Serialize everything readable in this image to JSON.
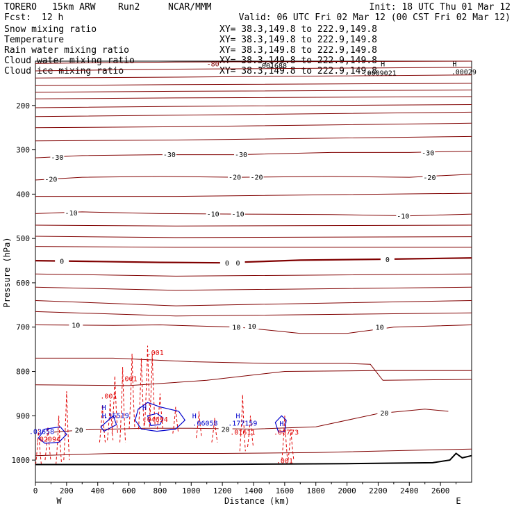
{
  "colors": {
    "snow": "#000000",
    "temperature": "#800000",
    "rain": "#e00000",
    "cloud_water": "#0000cc",
    "cloud_ice": "#000000",
    "zero_isotherm": "#800000"
  },
  "header": {
    "model": "TORERO",
    "resolution": "15km ARW",
    "run": "Run2",
    "org": "NCAR/MMM",
    "init": "Init: 18 UTC Thu 01 Mar 12",
    "fcst_label": "Fcst:",
    "fcst_value": "12 h",
    "valid": "Valid: 06 UTC Fri 02 Mar 12 (00 CST Fri 02 Mar 12)"
  },
  "legend": [
    {
      "name": "Snow mixing ratio",
      "xy": "XY=  38.3,149.8 to 222.9,149.8",
      "color": "#000000"
    },
    {
      "name": "Temperature",
      "xy": "XY=  38.3,149.8 to 222.9,149.8",
      "color": "#800000"
    },
    {
      "name": "Rain water mixing ratio",
      "xy": "XY=  38.3,149.8 to 222.9,149.8",
      "color": "#e00000"
    },
    {
      "name": "Cloud water mixing ratio",
      "xy": "XY=  38.3,149.8 to 222.9,149.8",
      "color": "#0000cc"
    },
    {
      "name": "Cloud ice mixing ratio",
      "xy": "XY=  38.3,149.8 to 222.9,149.8",
      "color": "#000000"
    }
  ],
  "chart_data": {
    "type": "cross-section contour",
    "xlabel": "Distance (km)",
    "ylabel": "Pressure (hPa)",
    "xlim": [
      0,
      2800
    ],
    "ylim": [
      1050,
      100
    ],
    "x_ticks": [
      0,
      200,
      400,
      600,
      800,
      1000,
      1200,
      1400,
      1600,
      1800,
      2000,
      2200,
      2400,
      2600
    ],
    "y_ticks": [
      200,
      300,
      400,
      500,
      600,
      700,
      800,
      900,
      1000
    ],
    "endpoints": {
      "left": "W",
      "right": "E"
    },
    "temperature_contours": [
      {
        "label": "-30",
        "points": [
          [
            0,
            318
          ],
          [
            300,
            313
          ],
          [
            800,
            311
          ],
          [
            1300,
            311
          ],
          [
            1900,
            306
          ],
          [
            2400,
            306
          ],
          [
            2800,
            303
          ]
        ],
        "labels_at": [
          [
            140,
            316
          ],
          [
            860,
            310
          ],
          [
            1320,
            310
          ],
          [
            2520,
            306
          ]
        ]
      },
      {
        "label": "-20",
        "points": [
          [
            0,
            368
          ],
          [
            300,
            362
          ],
          [
            800,
            360
          ],
          [
            1300,
            362
          ],
          [
            1900,
            360
          ],
          [
            2400,
            362
          ],
          [
            2800,
            355
          ]
        ],
        "labels_at": [
          [
            100,
            366
          ],
          [
            1280,
            361
          ],
          [
            1420,
            361
          ],
          [
            2530,
            362
          ]
        ]
      },
      {
        "label": "-10",
        "points": [
          [
            0,
            444
          ],
          [
            300,
            440
          ],
          [
            800,
            444
          ],
          [
            1300,
            445
          ],
          [
            1900,
            446
          ],
          [
            2400,
            449
          ],
          [
            2800,
            445
          ]
        ],
        "labels_at": [
          [
            230,
            442
          ],
          [
            1140,
            444
          ],
          [
            1300,
            444
          ],
          [
            2360,
            449
          ]
        ]
      },
      {
        "label": "0",
        "points": [
          [
            0,
            550
          ],
          [
            400,
            552
          ],
          [
            800,
            554
          ],
          [
            1200,
            555
          ],
          [
            1700,
            549
          ],
          [
            2200,
            547
          ],
          [
            2800,
            544
          ]
        ],
        "labels_at": [
          [
            170,
            551
          ],
          [
            1230,
            555
          ],
          [
            1300,
            555
          ],
          [
            2260,
            547
          ]
        ]
      },
      {
        "label": "10",
        "points": [
          [
            0,
            695
          ],
          [
            500,
            696
          ],
          [
            800,
            695
          ],
          [
            1100,
            698
          ],
          [
            1300,
            700
          ],
          [
            1700,
            714
          ],
          [
            2000,
            714
          ],
          [
            2300,
            700
          ],
          [
            2800,
            695
          ]
        ],
        "labels_at": [
          [
            260,
            695
          ],
          [
            1290,
            700
          ],
          [
            1390,
            697
          ],
          [
            2210,
            700
          ]
        ]
      },
      {
        "label": "20",
        "points": [
          [
            120,
            937
          ],
          [
            300,
            932
          ],
          [
            700,
            928
          ],
          [
            1000,
            928
          ],
          [
            1400,
            930
          ],
          [
            1800,
            925
          ],
          [
            2200,
            895
          ],
          [
            2500,
            885
          ],
          [
            2650,
            890
          ]
        ],
        "labels_at": [
          [
            280,
            932
          ],
          [
            1220,
            930
          ],
          [
            2240,
            893
          ]
        ]
      }
    ],
    "unlabeled_contours": [
      [
        [
          0,
          105
        ],
        [
          900,
          102
        ],
        [
          2800,
          100
        ]
      ],
      [
        [
          0,
          122
        ],
        [
          900,
          118
        ],
        [
          2800,
          114
        ]
      ],
      [
        [
          0,
          138
        ],
        [
          900,
          136
        ],
        [
          2800,
          131
        ]
      ],
      [
        [
          0,
          155
        ],
        [
          900,
          153
        ],
        [
          2800,
          150
        ]
      ],
      [
        [
          0,
          170
        ],
        [
          900,
          168
        ],
        [
          2800,
          165
        ]
      ],
      [
        [
          0,
          185
        ],
        [
          900,
          183
        ],
        [
          2800,
          180
        ]
      ],
      [
        [
          0,
          205
        ],
        [
          900,
          202
        ],
        [
          2800,
          198
        ]
      ],
      [
        [
          0,
          225
        ],
        [
          900,
          222
        ],
        [
          2800,
          215
        ]
      ],
      [
        [
          0,
          250
        ],
        [
          900,
          248
        ],
        [
          2800,
          240
        ]
      ],
      [
        [
          0,
          280
        ],
        [
          900,
          278
        ],
        [
          2800,
          270
        ]
      ],
      [
        [
          0,
          405
        ],
        [
          900,
          405
        ],
        [
          2800,
          398
        ]
      ],
      [
        [
          0,
          470
        ],
        [
          900,
          472
        ],
        [
          2800,
          470
        ]
      ],
      [
        [
          0,
          495
        ],
        [
          900,
          498
        ],
        [
          2800,
          496
        ]
      ],
      [
        [
          0,
          518
        ],
        [
          900,
          520
        ],
        [
          2800,
          520
        ]
      ],
      [
        [
          0,
          580
        ],
        [
          900,
          585
        ],
        [
          2800,
          580
        ]
      ],
      [
        [
          0,
          610
        ],
        [
          900,
          617
        ],
        [
          2800,
          610
        ]
      ],
      [
        [
          0,
          640
        ],
        [
          900,
          652
        ],
        [
          2800,
          640
        ]
      ],
      [
        [
          0,
          665
        ],
        [
          900,
          675
        ],
        [
          2800,
          668
        ]
      ],
      [
        [
          0,
          770
        ],
        [
          500,
          770
        ],
        [
          1000,
          778
        ],
        [
          1500,
          782
        ],
        [
          2000,
          782
        ],
        [
          2150,
          784
        ],
        [
          2230,
          820
        ],
        [
          2800,
          818
        ]
      ],
      [
        [
          0,
          830
        ],
        [
          600,
          832
        ],
        [
          1100,
          820
        ],
        [
          1600,
          800
        ],
        [
          2200,
          798
        ],
        [
          2800,
          798
        ]
      ],
      [
        [
          0,
          990
        ],
        [
          500,
          985
        ],
        [
          1200,
          985
        ],
        [
          1800,
          983
        ],
        [
          2400,
          978
        ],
        [
          2800,
          975
        ]
      ]
    ],
    "plot_title": "-80",
    "rain_labels": [
      {
        "text": ".001",
        "x": 470,
        "p": 861
      },
      {
        "text": ".001",
        "x": 600,
        "p": 822
      },
      {
        "text": ".001",
        "x": 770,
        "p": 763
      },
      {
        "text": ".02094",
        "x": 80,
        "p": 958
      },
      {
        "text": ".04694",
        "x": 770,
        "p": 914
      },
      {
        "text": ".01611",
        "x": 1330,
        "p": 943
      },
      {
        "text": ".00773",
        "x": 1610,
        "p": 943
      },
      {
        "text": ".001",
        "x": 1600,
        "p": 1007
      }
    ],
    "cloud_labels": [
      {
        "text": ".15519",
        "x": 520,
        "p": 905
      },
      {
        "text": ".03658",
        "x": 40,
        "p": 941
      },
      {
        "text": ".06058",
        "x": 1090,
        "p": 922
      },
      {
        "text": ".177159",
        "x": 1330,
        "p": 922
      }
    ],
    "top_labels": [
      {
        "text": ".001688",
        "x": 1520,
        "p": 116
      },
      {
        "text": ".0009021",
        "x": 2210,
        "p": 132
      },
      {
        "text": ".00029",
        "x": 2750,
        "p": 130
      }
    ],
    "h_markers": [
      {
        "x": 440,
        "p": 887,
        "color": "#0000cc"
      },
      {
        "x": 440,
        "p": 906,
        "color": "#0000cc"
      },
      {
        "x": 700,
        "p": 887,
        "color": "#0000cc"
      },
      {
        "x": 1020,
        "p": 906,
        "color": "#0000cc"
      },
      {
        "x": 1300,
        "p": 906,
        "color": "#0000cc"
      },
      {
        "x": 1580,
        "p": 923,
        "color": "#0000cc"
      },
      {
        "x": 2230,
        "p": 112,
        "color": "#000000"
      },
      {
        "x": 2690,
        "p": 112,
        "color": "#000000"
      }
    ]
  }
}
